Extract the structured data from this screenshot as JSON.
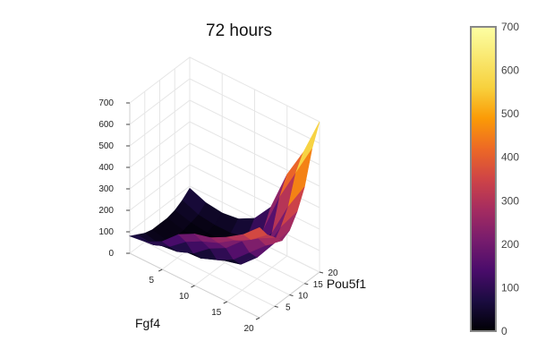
{
  "chart_data": {
    "type": "surface",
    "title": "72 hours",
    "xlabel": "Fgf4",
    "ylabel": "Pou5f1",
    "zlabel": "",
    "xlim": [
      0,
      20
    ],
    "ylim": [
      0,
      20
    ],
    "zlim": [
      0,
      700
    ],
    "x_ticks": [
      "5",
      "10",
      "15",
      "20"
    ],
    "y_ticks": [
      "5",
      "10",
      "15",
      "20"
    ],
    "z_ticks": [
      "0",
      "100",
      "200",
      "300",
      "400",
      "500",
      "600",
      "700"
    ],
    "colorscale": "inferno",
    "colorbar": {
      "range": [
        0,
        700
      ],
      "ticks": [
        "0",
        "100",
        "200",
        "300",
        "400",
        "500",
        "600",
        "700"
      ]
    },
    "x": [
      0,
      2.5,
      5,
      7.5,
      10,
      12.5,
      15,
      17.5,
      20
    ],
    "y": [
      0,
      2.5,
      5,
      7.5,
      10,
      12.5,
      15,
      17.5,
      20
    ],
    "z": [
      [
        80,
        90,
        130,
        200,
        240,
        260,
        300,
        350,
        420
      ],
      [
        60,
        50,
        80,
        140,
        180,
        210,
        260,
        300,
        360
      ],
      [
        40,
        20,
        30,
        60,
        120,
        160,
        230,
        280,
        320
      ],
      [
        30,
        10,
        5,
        10,
        40,
        80,
        150,
        220,
        280
      ],
      [
        30,
        10,
        5,
        5,
        10,
        30,
        100,
        200,
        300
      ],
      [
        30,
        10,
        5,
        5,
        10,
        30,
        110,
        250,
        360
      ],
      [
        40,
        20,
        10,
        10,
        20,
        60,
        160,
        320,
        450
      ],
      [
        60,
        30,
        20,
        20,
        40,
        110,
        300,
        450,
        600
      ],
      [
        90,
        60,
        50,
        60,
        100,
        190,
        380,
        520,
        700
      ]
    ]
  }
}
